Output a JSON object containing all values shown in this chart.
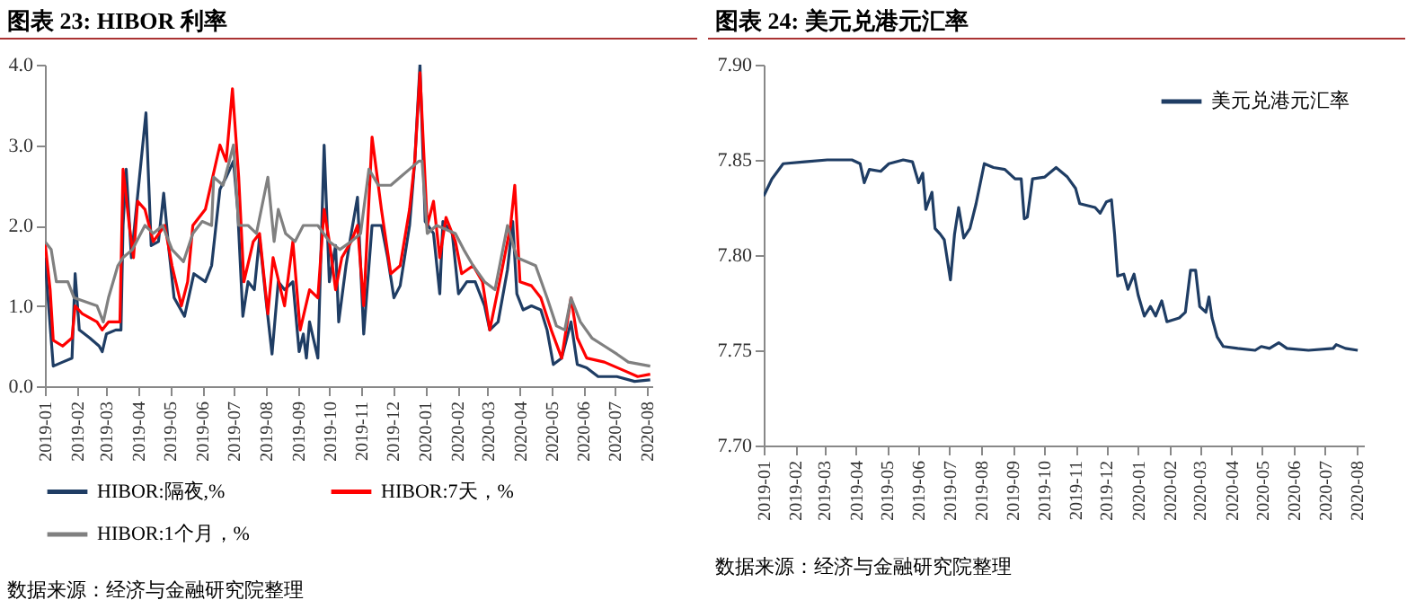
{
  "chart_data": [
    {
      "type": "line",
      "title": "图表 23: HIBOR 利率",
      "annotations": [
        "数据来源：经济与金融研究院整理"
      ],
      "legend": "bottom",
      "line_style": "solid",
      "xlim": [
        "2019-01-01",
        "2020-08-06"
      ],
      "xticks": [
        "2019-01",
        "2019-02",
        "2019-03",
        "2019-04",
        "2019-05",
        "2019-06",
        "2019-07",
        "2019-08",
        "2019-09",
        "2019-10",
        "2019-11",
        "2019-12",
        "2020-01",
        "2020-02",
        "2020-03",
        "2020-04",
        "2020-05",
        "2020-06",
        "2020-07",
        "2020-08"
      ],
      "ylim": [
        0,
        4
      ],
      "yticks": [
        {
          "value": 0,
          "label": "0.0"
        },
        {
          "value": 1,
          "label": "1.0"
        },
        {
          "value": 2,
          "label": "2.0"
        },
        {
          "value": 3,
          "label": "3.0"
        },
        {
          "value": 4,
          "label": "4.0"
        }
      ],
      "series": [
        {
          "name": "HIBOR:隔夜,%",
          "color": "#1f3d64",
          "x": [
            "2019-01-01",
            "2019-01-09",
            "2019-01-18",
            "2019-01-27",
            "2019-01-30",
            "2019-02-03",
            "2019-02-13",
            "2019-02-22",
            "2019-02-25",
            "2019-03-01",
            "2019-03-10",
            "2019-03-15",
            "2019-03-17",
            "2019-03-20",
            "2019-03-25",
            "2019-04-08",
            "2019-04-13",
            "2019-04-20",
            "2019-04-25",
            "2019-04-30",
            "2019-05-05",
            "2019-05-15",
            "2019-05-24",
            "2019-06-04",
            "2019-06-10",
            "2019-06-18",
            "2019-06-24",
            "2019-07-01",
            "2019-07-05",
            "2019-07-10",
            "2019-07-15",
            "2019-07-21",
            "2019-07-26",
            "2019-08-01",
            "2019-08-07",
            "2019-08-13",
            "2019-08-19",
            "2019-08-27",
            "2019-09-02",
            "2019-09-06",
            "2019-09-09",
            "2019-09-12",
            "2019-09-20",
            "2019-09-26",
            "2019-10-01",
            "2019-10-07",
            "2019-10-10",
            "2019-10-17",
            "2019-10-22",
            "2019-10-28",
            "2019-11-03",
            "2019-11-11",
            "2019-11-20",
            "2019-11-26",
            "2019-12-02",
            "2019-12-08",
            "2019-12-17",
            "2019-12-22",
            "2019-12-27",
            "2020-01-01",
            "2020-01-09",
            "2020-01-15",
            "2020-01-18",
            "2020-01-27",
            "2020-02-02",
            "2020-02-10",
            "2020-02-18",
            "2020-02-27",
            "2020-03-03",
            "2020-03-11",
            "2020-03-20",
            "2020-03-25",
            "2020-03-29",
            "2020-04-04",
            "2020-04-12",
            "2020-04-21",
            "2020-04-27",
            "2020-05-03",
            "2020-05-11",
            "2020-05-20",
            "2020-05-26",
            "2020-06-04",
            "2020-06-15",
            "2020-07-03",
            "2020-07-20",
            "2020-08-04"
          ],
          "values": [
            1.6,
            0.25,
            0.3,
            0.35,
            1.4,
            0.7,
            0.6,
            0.5,
            0.43,
            0.65,
            0.7,
            0.7,
            2.0,
            2.7,
            1.6,
            3.4,
            1.75,
            1.8,
            2.4,
            1.7,
            1.1,
            0.87,
            1.4,
            1.3,
            1.5,
            2.45,
            2.6,
            2.8,
            2.2,
            0.87,
            1.3,
            1.2,
            1.85,
            1.1,
            0.4,
            1.3,
            1.2,
            1.3,
            0.43,
            0.65,
            0.35,
            0.8,
            0.35,
            3.0,
            1.3,
            1.75,
            0.8,
            1.5,
            1.9,
            2.35,
            0.65,
            2.0,
            2.0,
            1.6,
            1.1,
            1.25,
            2.0,
            2.8,
            4.0,
            2.05,
            1.9,
            1.15,
            2.05,
            1.9,
            1.15,
            1.3,
            1.3,
            1.0,
            0.7,
            0.8,
            1.45,
            2.05,
            1.15,
            0.95,
            1.0,
            0.95,
            0.7,
            0.27,
            0.35,
            0.8,
            0.27,
            0.23,
            0.12,
            0.12,
            0.06,
            0.08
          ]
        },
        {
          "name": "HIBOR:7天，%",
          "color": "#ff0000",
          "x": [
            "2019-01-01",
            "2019-01-06",
            "2019-01-09",
            "2019-01-18",
            "2019-01-27",
            "2019-01-30",
            "2019-02-06",
            "2019-02-20",
            "2019-02-25",
            "2019-03-03",
            "2019-03-14",
            "2019-03-17",
            "2019-03-23",
            "2019-03-27",
            "2019-03-31",
            "2019-04-07",
            "2019-04-15",
            "2019-04-26",
            "2019-05-03",
            "2019-05-12",
            "2019-05-18",
            "2019-05-23",
            "2019-06-04",
            "2019-06-18",
            "2019-06-24",
            "2019-06-30",
            "2019-07-06",
            "2019-07-11",
            "2019-07-20",
            "2019-07-26",
            "2019-08-03",
            "2019-08-08",
            "2019-08-19",
            "2019-08-27",
            "2019-09-03",
            "2019-09-12",
            "2019-09-20",
            "2019-09-26",
            "2019-10-01",
            "2019-10-07",
            "2019-10-13",
            "2019-10-22",
            "2019-10-28",
            "2019-11-03",
            "2019-11-11",
            "2019-11-20",
            "2019-11-29",
            "2019-12-08",
            "2019-12-17",
            "2019-12-22",
            "2019-12-27",
            "2020-01-03",
            "2020-01-09",
            "2020-01-15",
            "2020-01-21",
            "2020-01-30",
            "2020-02-05",
            "2020-02-16",
            "2020-02-25",
            "2020-03-03",
            "2020-03-14",
            "2020-03-23",
            "2020-03-27",
            "2020-04-01",
            "2020-04-12",
            "2020-04-21",
            "2020-05-01",
            "2020-05-11",
            "2020-05-20",
            "2020-05-26",
            "2020-06-04",
            "2020-06-21",
            "2020-07-09",
            "2020-07-23",
            "2020-08-04"
          ],
          "values": [
            1.8,
            1.2,
            0.57,
            0.5,
            0.6,
            1.0,
            0.9,
            0.8,
            0.7,
            0.8,
            0.8,
            2.7,
            2.0,
            1.6,
            2.3,
            2.2,
            1.8,
            2.0,
            1.5,
            1.0,
            1.3,
            2.0,
            2.2,
            3.0,
            2.8,
            3.7,
            2.6,
            1.3,
            1.8,
            1.9,
            0.9,
            1.6,
            1.0,
            1.8,
            0.7,
            1.2,
            1.1,
            2.2,
            1.8,
            1.2,
            1.6,
            1.8,
            2.0,
            1.0,
            3.1,
            2.2,
            1.4,
            1.5,
            2.2,
            2.8,
            3.9,
            2.0,
            2.3,
            1.6,
            2.1,
            1.8,
            1.4,
            1.5,
            1.3,
            0.7,
            1.4,
            2.0,
            2.5,
            1.3,
            1.25,
            1.1,
            0.7,
            0.35,
            1.1,
            0.6,
            0.35,
            0.3,
            0.2,
            0.12,
            0.15
          ]
        },
        {
          "name": "HIBOR:1个月，%",
          "color": "#808080",
          "x": [
            "2019-01-01",
            "2019-01-07",
            "2019-01-12",
            "2019-01-23",
            "2019-01-29",
            "2019-02-09",
            "2019-02-20",
            "2019-02-26",
            "2019-03-03",
            "2019-03-12",
            "2019-03-17",
            "2019-03-26",
            "2019-04-07",
            "2019-04-15",
            "2019-04-24",
            "2019-05-03",
            "2019-05-14",
            "2019-05-23",
            "2019-06-01",
            "2019-06-10",
            "2019-06-12",
            "2019-06-21",
            "2019-07-01",
            "2019-07-06",
            "2019-07-15",
            "2019-07-23",
            "2019-08-03",
            "2019-08-09",
            "2019-08-13",
            "2019-08-20",
            "2019-08-29",
            "2019-09-06",
            "2019-09-20",
            "2019-10-01",
            "2019-10-11",
            "2019-10-22",
            "2019-10-31",
            "2019-11-08",
            "2019-11-17",
            "2019-11-29",
            "2019-12-08",
            "2019-12-17",
            "2019-12-26",
            "2019-12-29",
            "2020-01-03",
            "2020-01-12",
            "2020-01-21",
            "2020-01-30",
            "2020-02-07",
            "2020-02-16",
            "2020-02-27",
            "2020-03-08",
            "2020-03-20",
            "2020-03-29",
            "2020-04-07",
            "2020-04-16",
            "2020-04-27",
            "2020-05-06",
            "2020-05-14",
            "2020-05-20",
            "2020-05-29",
            "2020-06-09",
            "2020-06-21",
            "2020-07-03",
            "2020-07-14",
            "2020-08-04"
          ],
          "values": [
            1.8,
            1.7,
            1.3,
            1.3,
            1.1,
            1.05,
            1.0,
            0.8,
            1.1,
            1.5,
            1.6,
            1.7,
            2.0,
            1.9,
            2.0,
            1.7,
            1.55,
            1.9,
            2.05,
            2.0,
            2.6,
            2.5,
            3.0,
            2.0,
            2.0,
            1.9,
            2.6,
            1.8,
            2.2,
            1.9,
            1.8,
            2.0,
            2.0,
            1.8,
            1.7,
            1.8,
            1.9,
            2.7,
            2.5,
            2.5,
            2.6,
            2.7,
            2.8,
            2.8,
            1.9,
            2.0,
            1.95,
            1.9,
            1.7,
            1.5,
            1.3,
            1.2,
            2.0,
            1.6,
            1.55,
            1.5,
            1.1,
            0.75,
            0.7,
            1.1,
            0.8,
            0.6,
            0.5,
            0.4,
            0.3,
            0.25
          ]
        }
      ]
    },
    {
      "type": "line",
      "title": "图表 24: 美元兑港元汇率",
      "annotations": [
        "数据来源：经济与金融研究院整理"
      ],
      "legend": "top right",
      "line_style": "solid",
      "xlim": [
        "2019-01-01",
        "2020-08-08"
      ],
      "xticks": [
        "2019-01",
        "2019-02",
        "2019-03",
        "2019-04",
        "2019-05",
        "2019-06",
        "2019-07",
        "2019-08",
        "2019-09",
        "2019-10",
        "2019-11",
        "2019-12",
        "2020-01",
        "2020-02",
        "2020-03",
        "2020-04",
        "2020-05",
        "2020-06",
        "2020-07",
        "2020-08"
      ],
      "ylim": [
        7.7,
        7.9
      ],
      "yticks": [
        {
          "value": 7.7,
          "label": "7.70"
        },
        {
          "value": 7.75,
          "label": "7.75"
        },
        {
          "value": 7.8,
          "label": "7.80"
        },
        {
          "value": 7.85,
          "label": "7.85"
        },
        {
          "value": 7.9,
          "label": "7.90"
        }
      ],
      "series": [
        {
          "name": "美元兑港元汇率",
          "color": "#1f3d64",
          "x": [
            "2019-01-01",
            "2019-01-09",
            "2019-01-20",
            "2019-02-10",
            "2019-03-04",
            "2019-03-28",
            "2019-04-05",
            "2019-04-09",
            "2019-04-14",
            "2019-04-25",
            "2019-05-03",
            "2019-05-17",
            "2019-05-26",
            "2019-06-01",
            "2019-06-05",
            "2019-06-08",
            "2019-06-14",
            "2019-06-17",
            "2019-06-22",
            "2019-06-26",
            "2019-07-02",
            "2019-07-06",
            "2019-07-10",
            "2019-07-15",
            "2019-07-21",
            "2019-07-27",
            "2019-08-04",
            "2019-08-13",
            "2019-08-24",
            "2019-09-03",
            "2019-09-09",
            "2019-09-12",
            "2019-09-15",
            "2019-09-20",
            "2019-10-02",
            "2019-10-13",
            "2019-10-24",
            "2019-11-01",
            "2019-11-05",
            "2019-11-20",
            "2019-11-25",
            "2019-12-01",
            "2019-12-06",
            "2019-12-09",
            "2019-12-12",
            "2019-12-18",
            "2019-12-22",
            "2019-12-28",
            "2020-01-01",
            "2020-01-07",
            "2020-01-13",
            "2020-01-18",
            "2020-01-24",
            "2020-01-29",
            "2020-02-10",
            "2020-02-16",
            "2020-02-21",
            "2020-02-26",
            "2020-03-01",
            "2020-03-07",
            "2020-03-10",
            "2020-03-13",
            "2020-03-18",
            "2020-03-24",
            "2020-04-07",
            "2020-04-24",
            "2020-04-30",
            "2020-05-08",
            "2020-05-17",
            "2020-05-25",
            "2020-06-15",
            "2020-07-09",
            "2020-07-12",
            "2020-07-21",
            "2020-08-02"
          ],
          "values": [
            7.831,
            7.84,
            7.848,
            7.849,
            7.85,
            7.85,
            7.848,
            7.838,
            7.845,
            7.844,
            7.848,
            7.85,
            7.849,
            7.838,
            7.843,
            7.824,
            7.833,
            7.814,
            7.811,
            7.808,
            7.787,
            7.811,
            7.825,
            7.809,
            7.814,
            7.827,
            7.848,
            7.846,
            7.845,
            7.84,
            7.84,
            7.819,
            7.82,
            7.84,
            7.841,
            7.846,
            7.841,
            7.835,
            7.827,
            7.825,
            7.822,
            7.828,
            7.829,
            7.811,
            7.789,
            7.79,
            7.782,
            7.79,
            7.779,
            7.768,
            7.773,
            7.768,
            7.776,
            7.765,
            7.767,
            7.77,
            7.792,
            7.792,
            7.773,
            7.77,
            7.778,
            7.767,
            7.757,
            7.752,
            7.751,
            7.75,
            7.752,
            7.751,
            7.754,
            7.751,
            7.75,
            7.751,
            7.753,
            7.751,
            7.75
          ]
        }
      ]
    }
  ]
}
